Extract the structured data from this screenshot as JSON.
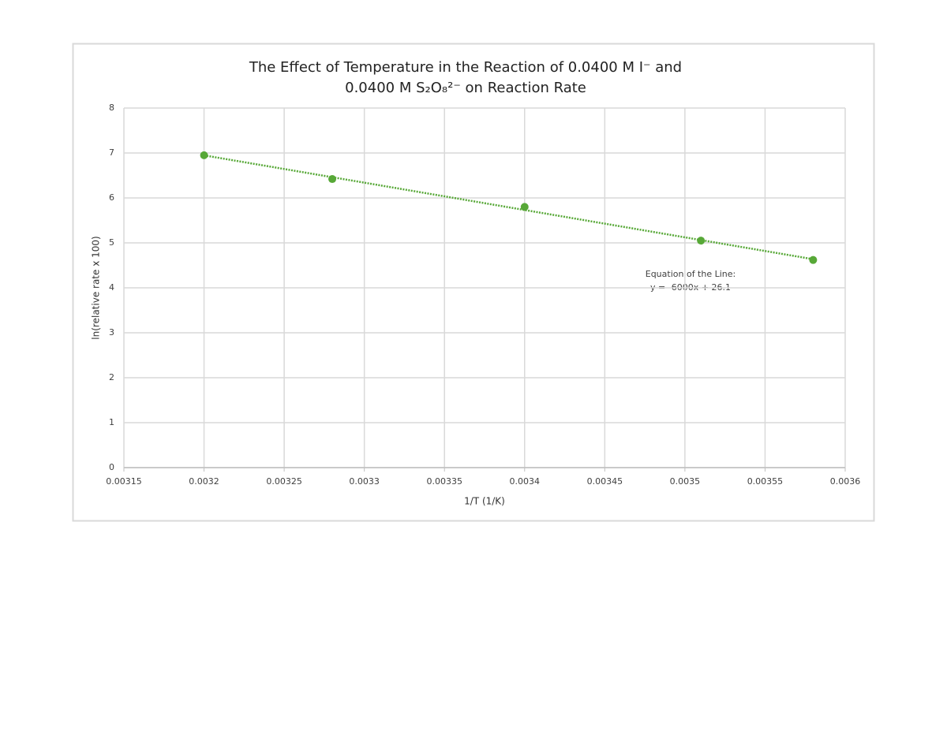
{
  "chart_data": {
    "type": "scatter",
    "title": [
      "The Effect of Temperature in the Reaction of 0.0400 M I⁻ and",
      "0.0400 M S₂O₈²⁻ on Reaction Rate"
    ],
    "x_label": "1/T (1/K)",
    "y_label": "ln(relative rate x 100)",
    "annotation": [
      "Equation of the Line:",
      "y = -6000x + 26.1"
    ],
    "series": [
      {
        "color": "#57a837",
        "x": [
          0.0032,
          0.00328,
          0.0034,
          0.00351,
          0.00358
        ],
        "values": [
          6.95,
          6.42,
          5.8,
          5.05,
          4.62
        ]
      }
    ],
    "trendline": true,
    "xlim": [
      0.00315,
      0.0036
    ],
    "xticks": [
      0.00315,
      0.0032,
      0.00325,
      0.0033,
      0.00335,
      0.0034,
      0.00345,
      0.0035,
      0.00355,
      0.0036
    ],
    "ylim": [
      0,
      8
    ],
    "yticks": [
      0,
      1,
      2,
      3,
      4,
      5,
      6,
      7,
      8
    ],
    "grid": true
  }
}
